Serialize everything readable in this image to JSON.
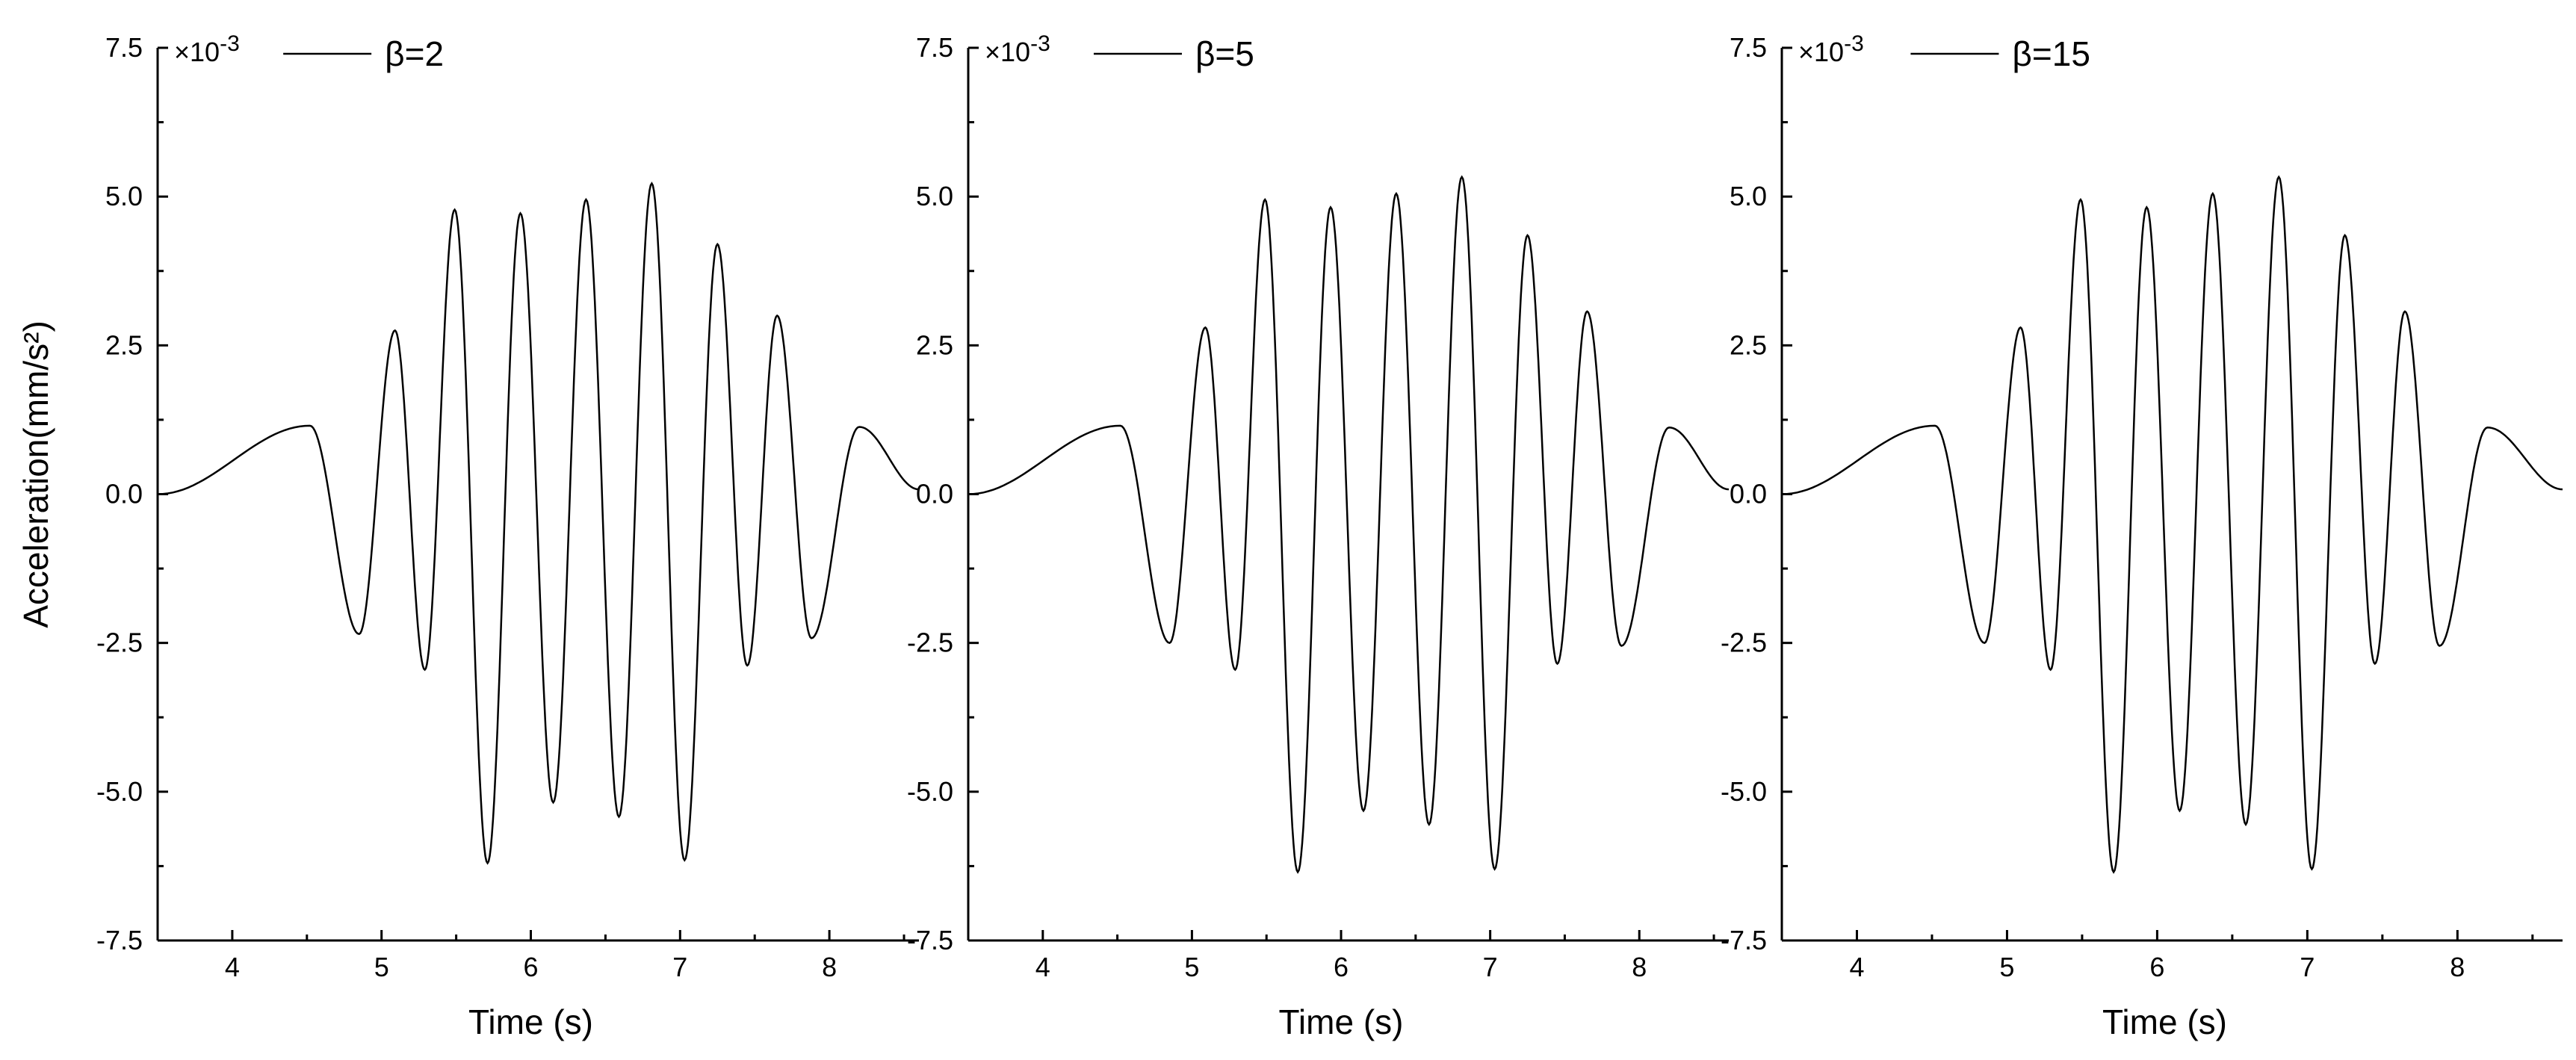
{
  "figure": {
    "ylabel": "Acceleration(mm/s²)"
  },
  "chart_data": [
    {
      "type": "line",
      "series": [
        {
          "name": "β=2",
          "color": "#000000"
        }
      ],
      "xlabel": "Time (s)",
      "ylabel": "Acceleration(mm/s²)",
      "y_multiplier": "×10-3",
      "xlim": [
        3.5,
        8.6
      ],
      "ylim": [
        -7.5,
        7.5
      ],
      "xticks": [
        4,
        5,
        6,
        7,
        8
      ],
      "yticks": [
        "-7.5",
        "-5.0",
        "-2.5",
        "0.0",
        "2.5",
        "5.0",
        "7.5"
      ],
      "extrema": [
        {
          "x": 3.5,
          "y": 0.0
        },
        {
          "x": 4.52,
          "y": 1.15
        },
        {
          "x": 4.85,
          "y": -2.35
        },
        {
          "x": 5.09,
          "y": 2.75
        },
        {
          "x": 5.29,
          "y": -2.95
        },
        {
          "x": 5.49,
          "y": 4.78
        },
        {
          "x": 5.71,
          "y": -6.2
        },
        {
          "x": 5.93,
          "y": 4.72
        },
        {
          "x": 6.15,
          "y": -5.18
        },
        {
          "x": 6.37,
          "y": 4.95
        },
        {
          "x": 6.59,
          "y": -5.42
        },
        {
          "x": 6.81,
          "y": 5.22
        },
        {
          "x": 7.03,
          "y": -6.15
        },
        {
          "x": 7.25,
          "y": 4.2
        },
        {
          "x": 7.45,
          "y": -2.88
        },
        {
          "x": 7.65,
          "y": 3.0
        },
        {
          "x": 7.88,
          "y": -2.42
        },
        {
          "x": 8.2,
          "y": 1.13
        },
        {
          "x": 8.6,
          "y": 0.08
        }
      ],
      "legend_position": "top"
    },
    {
      "type": "line",
      "series": [
        {
          "name": "β=5",
          "color": "#000000"
        }
      ],
      "xlabel": "Time  (s)",
      "ylabel": "",
      "y_multiplier": "×10-3",
      "xlim": [
        3.5,
        8.6
      ],
      "ylim": [
        -7.5,
        7.5
      ],
      "xticks": [
        4,
        5,
        6,
        7,
        8
      ],
      "yticks": [
        "-7.5",
        "-5.0",
        "-2.5",
        "0.0",
        "2.5",
        "5.0",
        "7.5"
      ],
      "extrema": [
        {
          "x": 3.5,
          "y": 0.0
        },
        {
          "x": 4.52,
          "y": 1.15
        },
        {
          "x": 4.85,
          "y": -2.5
        },
        {
          "x": 5.09,
          "y": 2.8
        },
        {
          "x": 5.29,
          "y": -2.95
        },
        {
          "x": 5.49,
          "y": 4.95
        },
        {
          "x": 5.71,
          "y": -6.35
        },
        {
          "x": 5.93,
          "y": 4.82
        },
        {
          "x": 6.15,
          "y": -5.32
        },
        {
          "x": 6.37,
          "y": 5.05
        },
        {
          "x": 6.59,
          "y": -5.55
        },
        {
          "x": 6.81,
          "y": 5.33
        },
        {
          "x": 7.03,
          "y": -6.3
        },
        {
          "x": 7.25,
          "y": 4.35
        },
        {
          "x": 7.45,
          "y": -2.85
        },
        {
          "x": 7.65,
          "y": 3.07
        },
        {
          "x": 7.88,
          "y": -2.55
        },
        {
          "x": 8.2,
          "y": 1.12
        },
        {
          "x": 8.6,
          "y": 0.08
        }
      ],
      "legend_position": "top"
    },
    {
      "type": "line",
      "series": [
        {
          "name": "β=15",
          "color": "#000000"
        }
      ],
      "xlabel": "Time  (s)",
      "ylabel": "",
      "y_multiplier": "×10-3",
      "xlim": [
        3.5,
        8.7
      ],
      "ylim": [
        -7.5,
        7.5
      ],
      "xticks": [
        4,
        5,
        6,
        7,
        8
      ],
      "yticks": [
        "-7.5",
        "-5.0",
        "-2.5",
        "0.0",
        "2.5",
        "5.0",
        "7.5"
      ],
      "extrema": [
        {
          "x": 3.5,
          "y": 0.0
        },
        {
          "x": 4.52,
          "y": 1.15
        },
        {
          "x": 4.85,
          "y": -2.5
        },
        {
          "x": 5.09,
          "y": 2.8
        },
        {
          "x": 5.29,
          "y": -2.95
        },
        {
          "x": 5.49,
          "y": 4.95
        },
        {
          "x": 5.71,
          "y": -6.35
        },
        {
          "x": 5.93,
          "y": 4.82
        },
        {
          "x": 6.15,
          "y": -5.32
        },
        {
          "x": 6.37,
          "y": 5.05
        },
        {
          "x": 6.59,
          "y": -5.55
        },
        {
          "x": 6.81,
          "y": 5.33
        },
        {
          "x": 7.03,
          "y": -6.3
        },
        {
          "x": 7.25,
          "y": 4.35
        },
        {
          "x": 7.45,
          "y": -2.85
        },
        {
          "x": 7.65,
          "y": 3.07
        },
        {
          "x": 7.88,
          "y": -2.55
        },
        {
          "x": 8.2,
          "y": 1.12
        },
        {
          "x": 8.7,
          "y": 0.08
        }
      ],
      "legend_position": "top"
    }
  ]
}
